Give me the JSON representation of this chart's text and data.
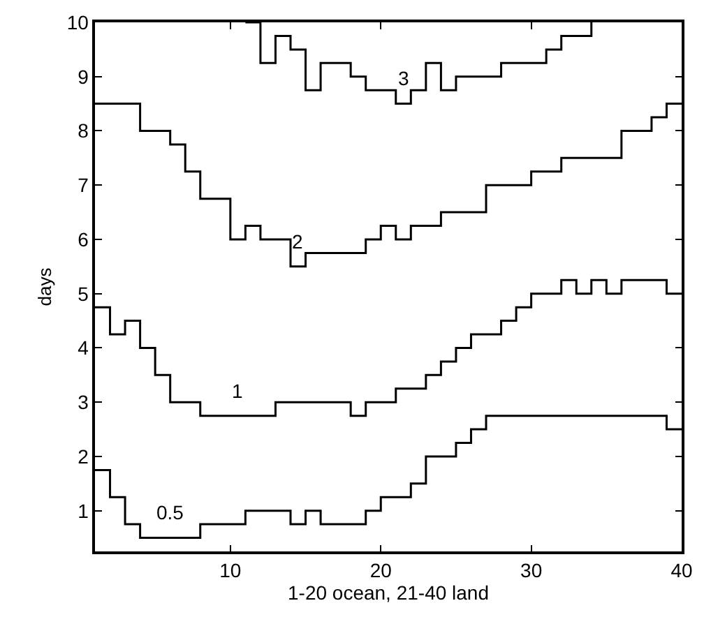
{
  "chart_data": {
    "type": "step",
    "xlabel": "1-20 ocean, 21-40 land",
    "ylabel": "days",
    "x": [
      1,
      2,
      3,
      4,
      5,
      6,
      7,
      8,
      9,
      10,
      11,
      12,
      13,
      14,
      15,
      16,
      17,
      18,
      19,
      20,
      21,
      22,
      23,
      24,
      25,
      26,
      27,
      28,
      29,
      30,
      31,
      32,
      33,
      34,
      35,
      36,
      37,
      38,
      39,
      40
    ],
    "series": [
      {
        "name": "0.5",
        "color": "#000000",
        "values": [
          1.75,
          1.25,
          0.75,
          0.5,
          0.5,
          0.5,
          0.5,
          0.75,
          0.75,
          0.75,
          1.0,
          1.0,
          1.0,
          0.75,
          1.0,
          0.75,
          0.75,
          0.75,
          1.0,
          1.25,
          1.25,
          1.5,
          2.0,
          2.0,
          2.25,
          2.5,
          2.75,
          2.75,
          2.75,
          2.75,
          2.75,
          2.75,
          2.75,
          2.75,
          2.75,
          2.75,
          2.75,
          2.75,
          2.5,
          2.5
        ]
      },
      {
        "name": "1",
        "color": "#000000",
        "values": [
          4.75,
          4.25,
          4.5,
          4.0,
          3.5,
          3.0,
          3.0,
          2.75,
          2.75,
          2.75,
          2.75,
          2.75,
          3.0,
          3.0,
          3.0,
          3.0,
          3.0,
          2.75,
          3.0,
          3.0,
          3.25,
          3.25,
          3.5,
          3.75,
          4.0,
          4.25,
          4.25,
          4.5,
          4.75,
          5.0,
          5.0,
          5.25,
          5.0,
          5.25,
          5.0,
          5.25,
          5.25,
          5.25,
          5.0,
          5.0
        ]
      },
      {
        "name": "2",
        "color": "#000000",
        "values": [
          8.5,
          8.5,
          8.5,
          8.0,
          8.0,
          7.75,
          7.25,
          6.75,
          6.75,
          6.0,
          6.25,
          6.0,
          6.0,
          5.5,
          5.75,
          5.75,
          5.75,
          5.75,
          6.0,
          6.25,
          6.0,
          6.25,
          6.25,
          6.5,
          6.5,
          6.5,
          7.0,
          7.0,
          7.0,
          7.25,
          7.25,
          7.5,
          7.5,
          7.5,
          7.5,
          8.0,
          8.0,
          8.25,
          8.5,
          8.5
        ]
      },
      {
        "name": "3",
        "color": "#000000",
        "values": [
          null,
          null,
          null,
          null,
          null,
          null,
          null,
          null,
          null,
          null,
          10.0,
          9.25,
          9.75,
          9.5,
          8.75,
          9.25,
          9.25,
          9.0,
          8.75,
          8.75,
          8.5,
          8.75,
          9.25,
          8.75,
          9.0,
          9.0,
          9.0,
          9.25,
          9.25,
          9.25,
          9.5,
          9.75,
          9.75,
          10.0,
          null,
          null,
          null,
          null,
          null,
          null
        ]
      }
    ],
    "xlim": [
      1,
      40
    ],
    "xticks": [
      10,
      20,
      30,
      40
    ],
    "ylim": [
      0.25,
      10
    ],
    "yticks": [
      1,
      2,
      3,
      4,
      5,
      6,
      7,
      8,
      9,
      10
    ],
    "legend": false,
    "marker": "none",
    "line_style": "solid"
  }
}
